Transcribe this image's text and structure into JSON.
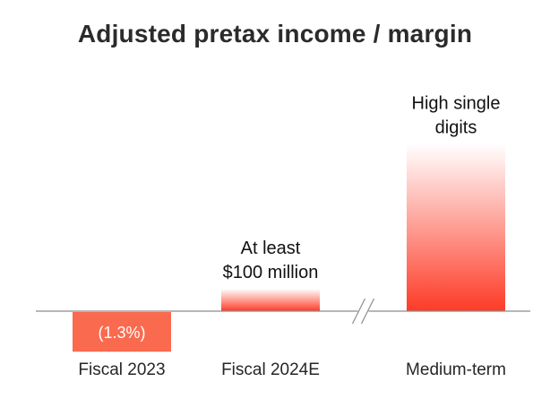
{
  "chart_data": {
    "type": "bar",
    "title": "Adjusted pretax income / margin",
    "xlabel": "",
    "ylabel": "",
    "grid": false,
    "legend": "none",
    "axis_break_between": [
      "Fiscal 2024E",
      "Medium-term"
    ],
    "categories": [
      "Fiscal 2023",
      "Fiscal 2024E",
      "Medium-term"
    ],
    "values": [
      -1.3,
      1.0,
      7.5
    ],
    "annotations": [
      {
        "category": "Fiscal 2023",
        "lines": [
          "(1.3%)"
        ],
        "position": "inside"
      },
      {
        "category": "Fiscal 2024E",
        "lines": [
          "At least",
          "$100 million"
        ],
        "position": "above"
      },
      {
        "category": "Medium-term",
        "lines": [
          "High single",
          "digits"
        ],
        "position": "above"
      }
    ],
    "colors": {
      "bar_solid": "#fa6a4f",
      "bar_gradient_top": "#ffffff",
      "bar_gradient_bottom": "#fd3b27",
      "axis": "#8c8c8c"
    }
  }
}
